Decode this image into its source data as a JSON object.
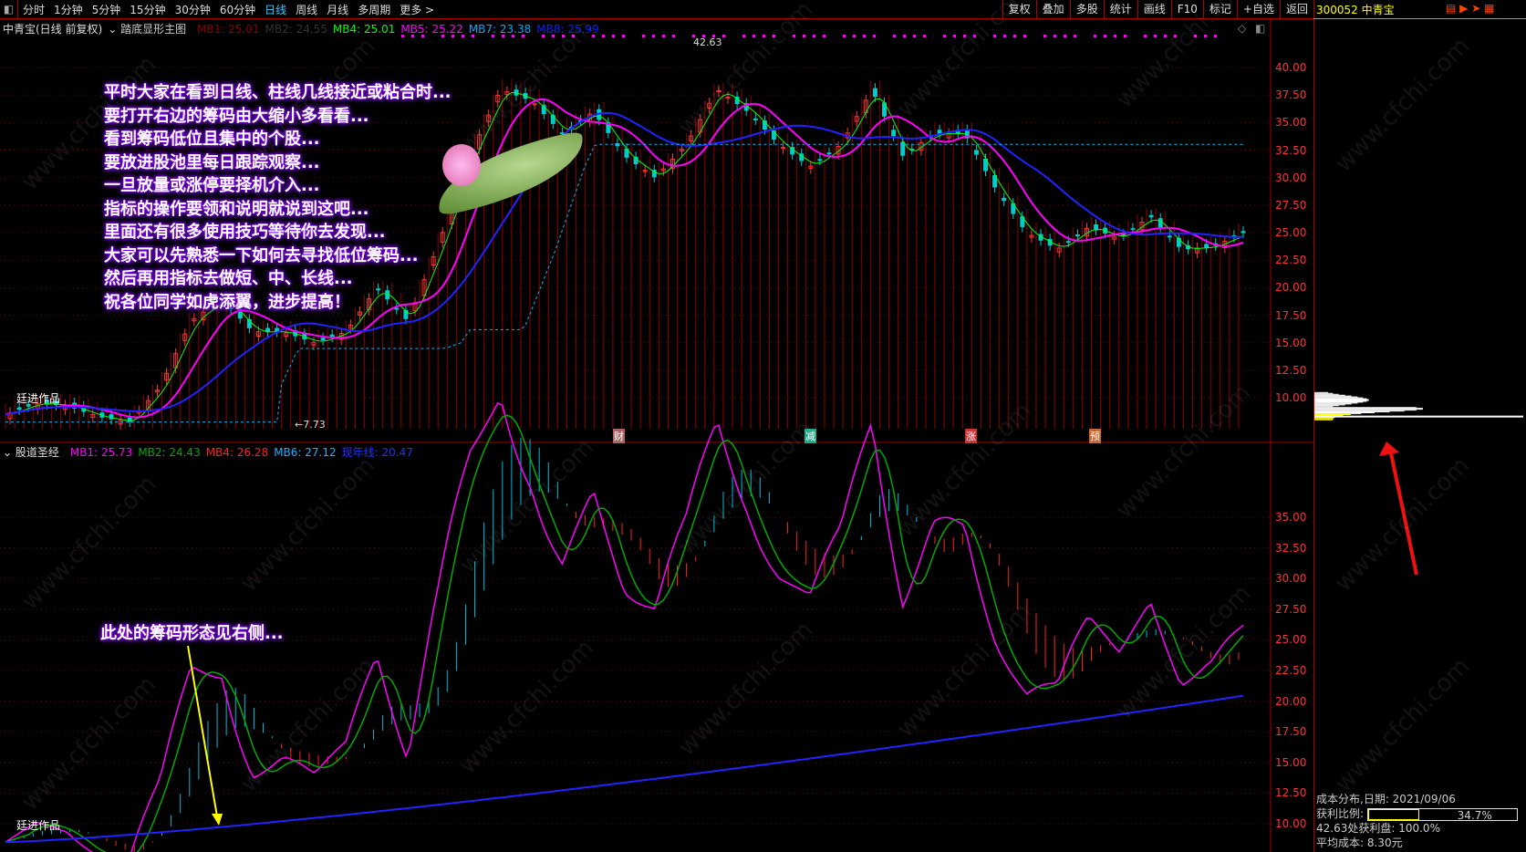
{
  "toolbar": {
    "periods": [
      "分时",
      "1分钟",
      "5分钟",
      "15分钟",
      "30分钟",
      "60分钟",
      "日线",
      "周线",
      "月线",
      "多周期",
      "更多 >"
    ],
    "active_period": "日线",
    "tools": [
      "复权",
      "叠加",
      "多股",
      "统计",
      "画线",
      "F10",
      "标记",
      "+自选",
      "返回"
    ]
  },
  "stock": {
    "code_name": "300052 中青宝"
  },
  "main_pane": {
    "title": "中青宝(日线 前复权)",
    "indicator": "踏底显形主图",
    "legend": [
      {
        "text": "MB1: 25.01",
        "color": "#8b0000"
      },
      {
        "text": "MB2: 24.55",
        "color": "#333333"
      },
      {
        "text": "MB4: 25.01",
        "color": "#00ff00"
      },
      {
        "text": "MB5: 25.22",
        "color": "#ff00ff"
      },
      {
        "text": "MB7: 23.38",
        "color": "#00aaff"
      },
      {
        "text": "MB8: 25.99",
        "color": "#0022ff"
      }
    ],
    "high_label": "42.63",
    "low_label": "←7.73",
    "author": "廷进作品",
    "y_ticks": [
      "40.00",
      "37.50",
      "35.00",
      "32.50",
      "30.00",
      "27.50",
      "25.00",
      "22.50",
      "20.00",
      "17.50",
      "15.00",
      "12.50",
      "10.00"
    ],
    "events": [
      "财",
      "减",
      "涨",
      "预"
    ],
    "message": [
      "平时大家在看到日线、柱线几线接近或粘合时...",
      "要打开右边的筹码由大缩小多看看...",
      "看到筹码低位且集中的个股...",
      "要放进股池里每日跟踪观察...",
      "一旦放量或涨停要择机介入...",
      "指标的操作要领和说明就说到这吧...",
      "里面还有很多使用技巧等待你去发现...",
      "大家可以先熟悉一下如何去寻找低位筹码...",
      "然后再用指标去做短、中、长线...",
      "祝各位同学如虎添翼，进步提高！"
    ]
  },
  "sub_pane": {
    "indicator": "股道圣经",
    "legend": [
      {
        "text": "MB1: 25.73",
        "color": "#ff00ff"
      },
      {
        "text": "MB2: 24.43",
        "color": "#00aa00"
      },
      {
        "text": "MB4: 26.28",
        "color": "#ff2020"
      },
      {
        "text": "MB6: 27.12",
        "color": "#20b0ff"
      },
      {
        "text": "现年线: 20.47",
        "color": "#2030ff"
      }
    ],
    "note": "此处的筹码形态见右侧...",
    "author": "廷进作品",
    "y_ticks": [
      "35.00",
      "32.50",
      "30.00",
      "27.50",
      "25.00",
      "22.50",
      "20.00",
      "17.50",
      "15.00",
      "12.50",
      "10.00"
    ]
  },
  "chip_panel": {
    "date_label": "成本分布,日期: 2021/09/06",
    "profit_label": "获利比例:",
    "profit_ratio": "34.7%",
    "profit_fraction": 0.347,
    "profit_at": "42.63处获利盘: 100.0%",
    "avg_cost": "平均成本: 8.30元"
  },
  "watermark": "www.cfchi.com",
  "chart_data": {
    "type": "candlestick",
    "close_keypoints": [
      8.5,
      9.5,
      9.3,
      8.3,
      7.8,
      11,
      17,
      19,
      16,
      16,
      15,
      16,
      20,
      17,
      24,
      32,
      38,
      37,
      34,
      36,
      32,
      30,
      33,
      38,
      36,
      33,
      31,
      33,
      38,
      32,
      34,
      34,
      29,
      25,
      23.5,
      25.5,
      24.5,
      26.5,
      23.5,
      23.7,
      25
    ],
    "high": 42.63,
    "low": 7.73,
    "ylim_main": [
      7,
      42
    ],
    "ylim_sub": [
      9,
      38
    ]
  }
}
